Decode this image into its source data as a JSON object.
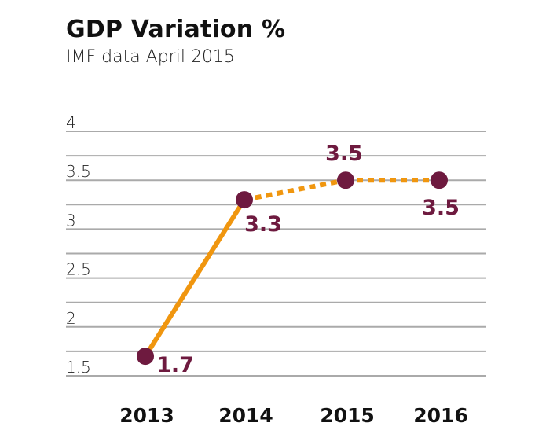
{
  "chart_data": {
    "type": "line",
    "title": "GDP Variation %",
    "subtitle": "IMF data April 2015",
    "categories": [
      "2013",
      "2014",
      "2015",
      "2016"
    ],
    "series": [
      {
        "values": [
          1.7,
          3.3,
          3.5,
          3.5
        ],
        "segment_styles": [
          "solid",
          "dashed",
          "dashed"
        ]
      }
    ],
    "data_labels": [
      "1.7",
      "3.3",
      "3.5",
      "3.5"
    ],
    "yticks": [
      "1.5",
      "2",
      "2.5",
      "3",
      "3.5",
      "4"
    ],
    "ylim": [
      1.5,
      4
    ],
    "grid": true,
    "colors": {
      "line": "#f0960f",
      "marker": "#6e1a3f",
      "label": "#6e1a3f",
      "grid": "#aaaaaa",
      "text": "#111111"
    }
  }
}
